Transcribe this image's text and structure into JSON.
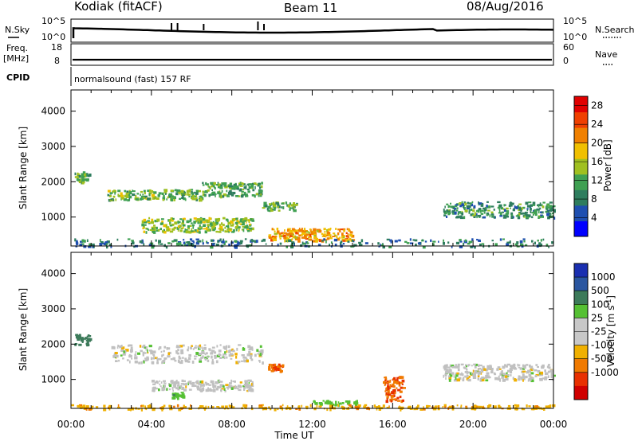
{
  "header": {
    "station": "Kodiak (fitACF)",
    "beam": "Beam 11",
    "date": "08/Aug/2016"
  },
  "noise_panel": {
    "left_label": "N.Sky",
    "right_label": "N.Search",
    "left_ticks": [
      "10^5",
      "10^0"
    ],
    "right_ticks": [
      "10^5",
      "10^0"
    ]
  },
  "freq_panel": {
    "left_label": "Freq.",
    "left_unit": "[MHz]",
    "right_label": "Nave",
    "left_ticks": [
      "18",
      "8"
    ],
    "right_ticks": [
      "60",
      "0"
    ]
  },
  "cpid_panel": {
    "label": "CPID",
    "text": "normalsound (fast) 157 RF"
  },
  "x_axis": {
    "label": "Time UT",
    "ticks": [
      "00:00",
      "04:00",
      "08:00",
      "12:00",
      "16:00",
      "20:00",
      "00:00"
    ]
  },
  "colors": {
    "power_scale": [
      "#0000ff",
      "#1e4fb0",
      "#2e7d5e",
      "#3fa052",
      "#a0c020",
      "#f0c000",
      "#f08000",
      "#f04000",
      "#e00000"
    ],
    "velocity_scale": [
      "#1a2fb0",
      "#2a56a0",
      "#3c7a5a",
      "#55c033",
      "#c8c8c8",
      "#c8c8c8",
      "#f0b000",
      "#f07a00",
      "#e83000",
      "#d00000"
    ],
    "ground_scatter": "#c0c0c0"
  },
  "chart_data": [
    {
      "type": "heatmap",
      "panel": "power",
      "ylabel": "Slant Range [km]",
      "yticks": [
        "1000",
        "2000",
        "3000",
        "4000"
      ],
      "ylim": [
        180,
        4600
      ],
      "xlim_hours": [
        0,
        24
      ],
      "colorbar_label": "Power [dB]",
      "colorbar_ticks": [
        "4",
        "8",
        "12",
        "16",
        "20",
        "24",
        "28"
      ],
      "colorbar_range": [
        0,
        30
      ],
      "features": [
        {
          "t": [
            0.1,
            0.9
          ],
          "r": [
            2000,
            2300
          ],
          "level": 12
        },
        {
          "t": [
            1.8,
            6.5
          ],
          "r": [
            1500,
            1800
          ],
          "level": 13
        },
        {
          "t": [
            6.5,
            9.5
          ],
          "r": [
            1600,
            2000
          ],
          "level": 11
        },
        {
          "t": [
            3.5,
            9.0
          ],
          "r": [
            600,
            1000
          ],
          "level": 14
        },
        {
          "t": [
            9.5,
            11.2
          ],
          "r": [
            1200,
            1450
          ],
          "level": 12
        },
        {
          "t": [
            9.8,
            14.0
          ],
          "r": [
            350,
            700
          ],
          "level": 20
        },
        {
          "t": [
            18.5,
            24.0
          ],
          "r": [
            1000,
            1450
          ],
          "level": 10
        },
        {
          "t": [
            0.0,
            24.0
          ],
          "r": [
            180,
            400
          ],
          "level": 8
        }
      ]
    },
    {
      "type": "heatmap",
      "panel": "velocity",
      "ylabel": "Slant Range [km]",
      "yticks": [
        "1000",
        "2000",
        "3000",
        "4000"
      ],
      "ylim": [
        180,
        4600
      ],
      "xlim_hours": [
        0,
        24
      ],
      "colorbar_label": "Velocity [m s^-1]",
      "colorbar_ticks": [
        "1000",
        "500",
        "100",
        "25",
        "-25",
        "-100",
        "-500",
        "-1000"
      ],
      "features": [
        {
          "t": [
            0.1,
            0.9
          ],
          "r": [
            2000,
            2300
          ],
          "vel": 200
        },
        {
          "t": [
            2.0,
            9.5
          ],
          "r": [
            1500,
            2000
          ],
          "vel": 0
        },
        {
          "t": [
            4.0,
            9.0
          ],
          "r": [
            700,
            1000
          ],
          "vel": 0
        },
        {
          "t": [
            5.0,
            5.6
          ],
          "r": [
            500,
            650
          ],
          "vel": 80
        },
        {
          "t": [
            9.8,
            10.5
          ],
          "r": [
            1250,
            1450
          ],
          "vel": -300
        },
        {
          "t": [
            12.0,
            14.2
          ],
          "r": [
            300,
            420
          ],
          "vel": 60
        },
        {
          "t": [
            15.5,
            16.5
          ],
          "r": [
            400,
            1100
          ],
          "vel": -300
        },
        {
          "t": [
            18.5,
            24.0
          ],
          "r": [
            1000,
            1450
          ],
          "vel": 0
        },
        {
          "t": [
            0.0,
            24.0
          ],
          "r": [
            180,
            300
          ],
          "vel": -80
        }
      ]
    }
  ]
}
